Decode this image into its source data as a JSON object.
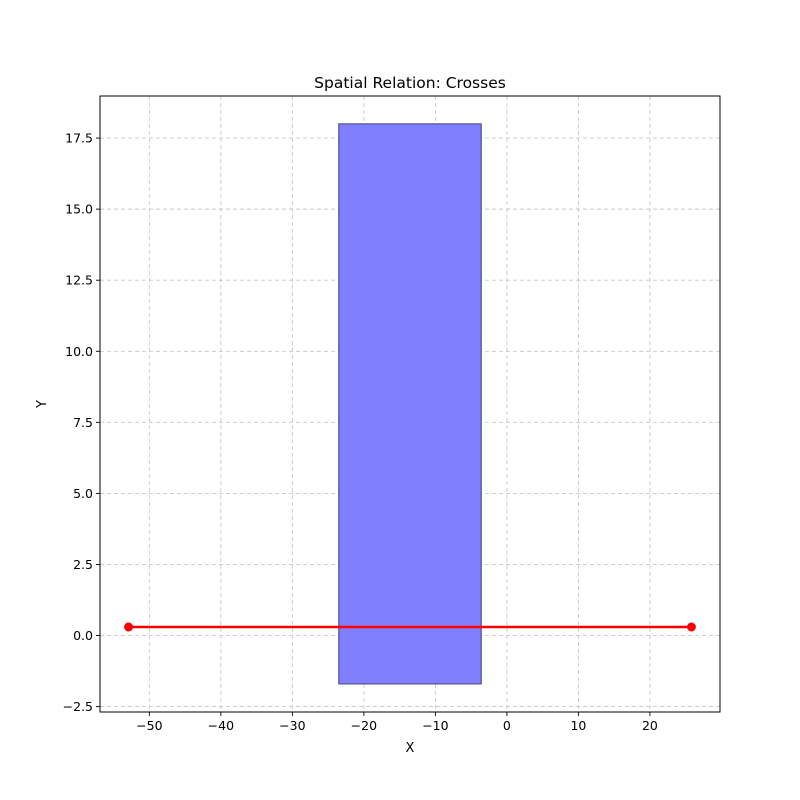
{
  "chart_data": {
    "type": "line",
    "title": "Spatial Relation: Crosses",
    "xlabel": "X",
    "ylabel": "Y",
    "xlim": [
      -56.9,
      29.8
    ],
    "ylim": [
      -2.69,
      18.98
    ],
    "xticks": [
      -50,
      -40,
      -30,
      -20,
      -10,
      0,
      10,
      20
    ],
    "yticks": [
      -2.5,
      0.0,
      2.5,
      5.0,
      7.5,
      10.0,
      12.5,
      15.0,
      17.5
    ],
    "xtick_labels": [
      "−50",
      "−40",
      "−30",
      "−20",
      "−10",
      "0",
      "10",
      "20"
    ],
    "ytick_labels": [
      "−2.5",
      "0.0",
      "2.5",
      "5.0",
      "7.5",
      "10.0",
      "12.5",
      "15.0",
      "17.5"
    ],
    "grid": true,
    "polygon": {
      "x": [
        -23.5,
        -3.6,
        -3.6,
        -23.5
      ],
      "y": [
        -1.7,
        -1.7,
        18.0,
        18.0
      ],
      "fill_color": "#8080ff",
      "edge_color": "#555599"
    },
    "series": [
      {
        "x": [
          -52.9,
          25.8
        ],
        "y": [
          0.3,
          0.3
        ],
        "color": "#ff0000",
        "marker": "circle"
      }
    ]
  }
}
